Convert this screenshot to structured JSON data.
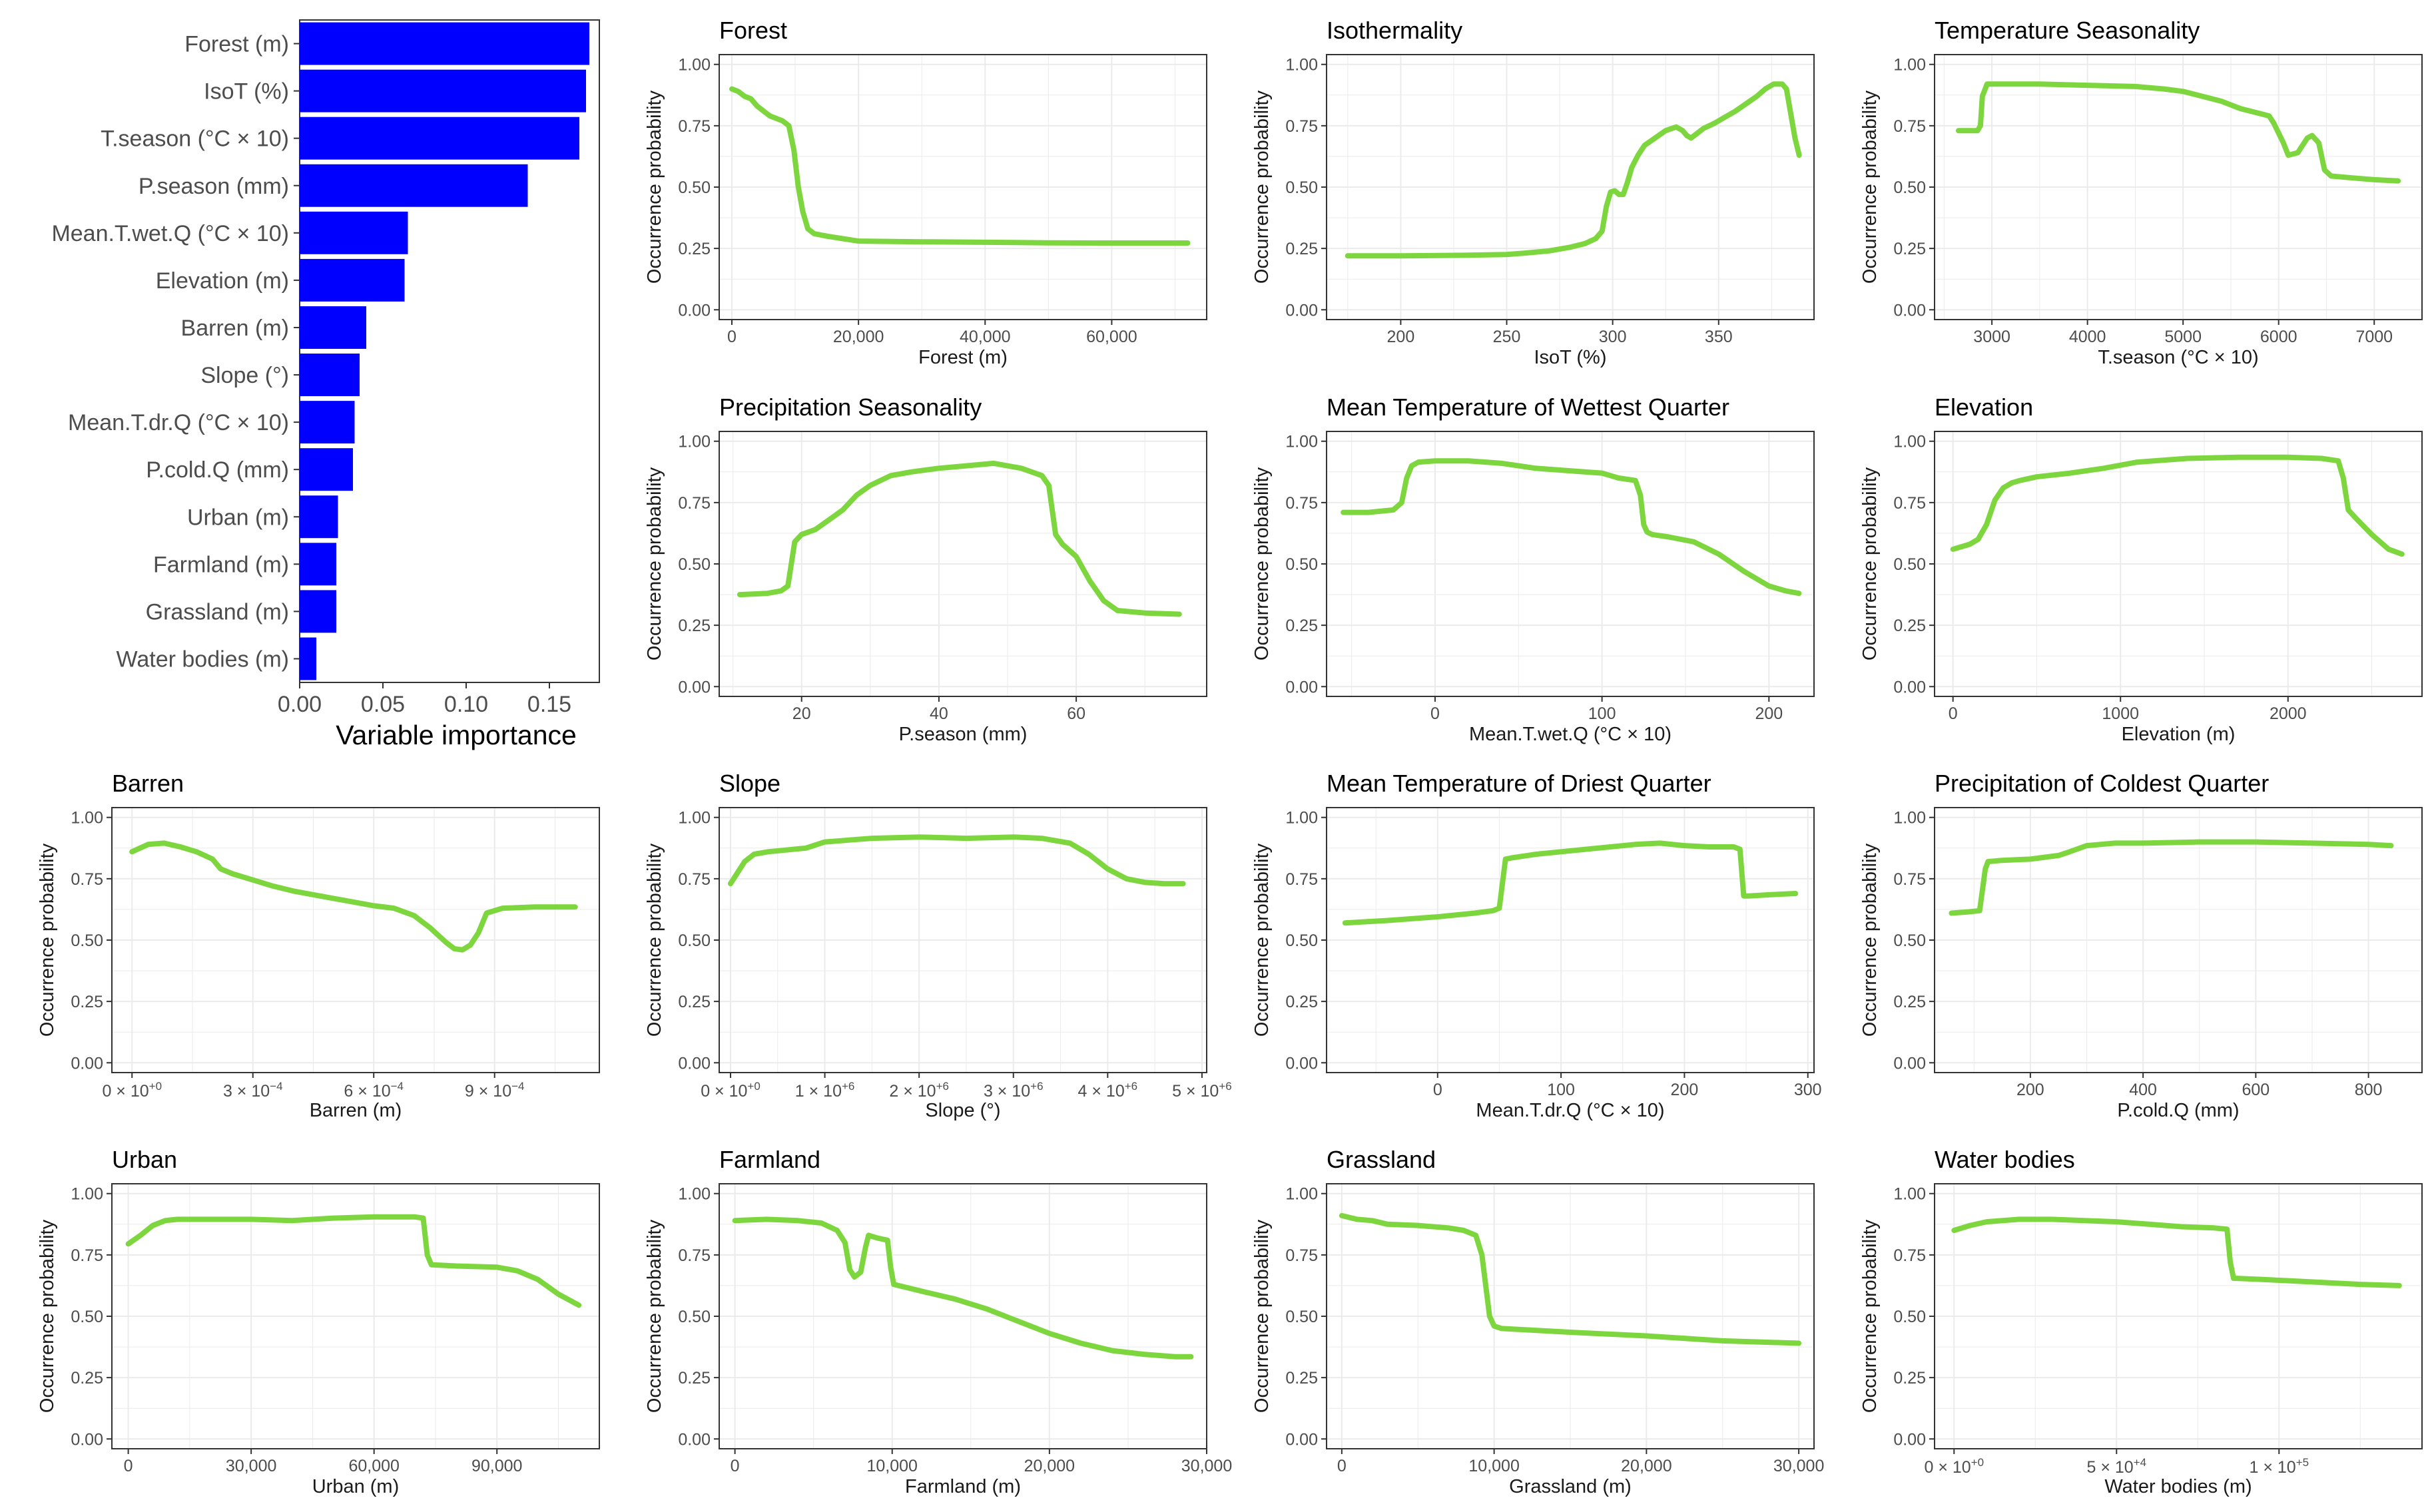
{
  "colors": {
    "line": "#7ed63f",
    "bar": "#0000ff",
    "grid": "#ebebeb",
    "frame": "#333333",
    "background": "#ffffff"
  },
  "chart_data": [
    {
      "type": "bar",
      "orientation": "horizontal",
      "title": "",
      "xlabel": "Variable importance",
      "xlim": [
        0,
        0.18
      ],
      "xticks": [
        0,
        0.05,
        0.1,
        0.15
      ],
      "xtick_labels": [
        "0.00",
        "0.05",
        "0.10",
        "0.15"
      ],
      "categories": [
        "Forest (m)",
        "IsoT (%)",
        "T.season (°C × 10)",
        "P.season (mm)",
        "Mean.T.wet.Q (°C × 10)",
        "Elevation (m)",
        "Barren (m)",
        "Slope (°)",
        "Mean.T.dr.Q (°C × 10)",
        "P.cold.Q (mm)",
        "Urban (m)",
        "Farmland (m)",
        "Grassland (m)",
        "Water bodies (m)"
      ],
      "values": [
        0.174,
        0.172,
        0.168,
        0.137,
        0.065,
        0.063,
        0.04,
        0.036,
        0.033,
        0.032,
        0.023,
        0.022,
        0.022,
        0.01
      ]
    },
    {
      "type": "line",
      "title": "Forest",
      "xlabel": "Forest (m)",
      "ylabel": "Occurrence probability",
      "xlim": [
        -2000,
        75000
      ],
      "ylim": [
        -0.04,
        1.04
      ],
      "xticks": [
        0,
        20000,
        40000,
        60000
      ],
      "xtick_labels": [
        "0",
        "20,000",
        "40,000",
        "60,000"
      ],
      "yticks": [
        0,
        0.25,
        0.5,
        0.75,
        1
      ],
      "ytick_labels": [
        "0.00",
        "0.25",
        "0.50",
        "0.75",
        "1.00"
      ],
      "x": [
        0,
        1000,
        2000,
        3000,
        4000,
        5000,
        6000,
        7000,
        8000,
        9000,
        9800,
        10500,
        11200,
        12000,
        13000,
        15000,
        20000,
        30000,
        40000,
        50000,
        60000,
        72000
      ],
      "y": [
        0.9,
        0.89,
        0.87,
        0.86,
        0.83,
        0.81,
        0.79,
        0.78,
        0.77,
        0.75,
        0.65,
        0.5,
        0.4,
        0.33,
        0.31,
        0.3,
        0.28,
        0.277,
        0.275,
        0.273,
        0.272,
        0.272
      ]
    },
    {
      "type": "line",
      "title": "Isothermality",
      "xlabel": "IsoT (%)",
      "ylabel": "Occurrence probability",
      "xlim": [
        165,
        395
      ],
      "ylim": [
        -0.04,
        1.04
      ],
      "xticks": [
        200,
        250,
        300,
        350
      ],
      "xtick_labels": [
        "200",
        "250",
        "300",
        "350"
      ],
      "yticks": [
        0,
        0.25,
        0.5,
        0.75,
        1
      ],
      "ytick_labels": [
        "0.00",
        "0.25",
        "0.50",
        "0.75",
        "1.00"
      ],
      "x": [
        175,
        200,
        230,
        250,
        260,
        270,
        280,
        287,
        292,
        295,
        297,
        299,
        301,
        303,
        305,
        307,
        309,
        312,
        315,
        320,
        325,
        330,
        333,
        335,
        337,
        340,
        343,
        348,
        352,
        358,
        363,
        368,
        372,
        376,
        380,
        382,
        384,
        386,
        388
      ],
      "y": [
        0.22,
        0.22,
        0.222,
        0.225,
        0.232,
        0.24,
        0.255,
        0.27,
        0.29,
        0.32,
        0.42,
        0.48,
        0.485,
        0.47,
        0.47,
        0.52,
        0.58,
        0.63,
        0.67,
        0.7,
        0.73,
        0.745,
        0.73,
        0.71,
        0.7,
        0.72,
        0.74,
        0.76,
        0.78,
        0.81,
        0.84,
        0.87,
        0.9,
        0.92,
        0.92,
        0.9,
        0.8,
        0.7,
        0.63
      ]
    },
    {
      "type": "line",
      "title": "Temperature Seasonality",
      "xlabel": "T.season (°C × 10)",
      "ylabel": "Occurrence probability",
      "xlim": [
        2400,
        7500
      ],
      "ylim": [
        -0.04,
        1.04
      ],
      "xticks": [
        3000,
        4000,
        5000,
        6000,
        7000
      ],
      "xtick_labels": [
        "3000",
        "4000",
        "5000",
        "6000",
        "7000"
      ],
      "yticks": [
        0,
        0.25,
        0.5,
        0.75,
        1
      ],
      "ytick_labels": [
        "0.00",
        "0.25",
        "0.50",
        "0.75",
        "1.00"
      ],
      "x": [
        2650,
        2800,
        2850,
        2880,
        2900,
        2950,
        3000,
        3500,
        4000,
        4500,
        4800,
        5000,
        5200,
        5400,
        5600,
        5800,
        5900,
        5950,
        6050,
        6100,
        6200,
        6300,
        6350,
        6420,
        6480,
        6550,
        6700,
        7000,
        7250
      ],
      "y": [
        0.73,
        0.73,
        0.73,
        0.75,
        0.87,
        0.92,
        0.92,
        0.92,
        0.915,
        0.91,
        0.9,
        0.89,
        0.87,
        0.85,
        0.82,
        0.8,
        0.79,
        0.76,
        0.68,
        0.63,
        0.64,
        0.7,
        0.71,
        0.68,
        0.57,
        0.545,
        0.54,
        0.53,
        0.525
      ]
    },
    {
      "type": "line",
      "title": "Precipitation Seasonality",
      "xlabel": "P.season (mm)",
      "ylabel": "Occurrence probability",
      "xlim": [
        8,
        79
      ],
      "ylim": [
        -0.04,
        1.04
      ],
      "xticks": [
        20,
        40,
        60
      ],
      "xtick_labels": [
        "20",
        "40",
        "60"
      ],
      "yticks": [
        0,
        0.25,
        0.5,
        0.75,
        1
      ],
      "ytick_labels": [
        "0.00",
        "0.25",
        "0.50",
        "0.75",
        "1.00"
      ],
      "x": [
        11,
        15,
        17,
        18,
        19,
        20,
        22,
        24,
        26,
        28,
        30,
        33,
        36,
        40,
        44,
        48,
        52,
        55,
        56,
        57,
        58,
        60,
        62,
        64,
        66,
        70,
        75
      ],
      "y": [
        0.375,
        0.38,
        0.39,
        0.41,
        0.59,
        0.62,
        0.64,
        0.68,
        0.72,
        0.78,
        0.82,
        0.86,
        0.875,
        0.89,
        0.9,
        0.91,
        0.89,
        0.86,
        0.82,
        0.62,
        0.58,
        0.53,
        0.43,
        0.35,
        0.31,
        0.3,
        0.295
      ]
    },
    {
      "type": "line",
      "title": "Mean Temperature of Wettest Quarter",
      "xlabel": "Mean.T.wet.Q (°C × 10)",
      "ylabel": "Occurrence probability",
      "xlim": [
        -65,
        227
      ],
      "ylim": [
        -0.04,
        1.04
      ],
      "xticks": [
        0,
        100,
        200
      ],
      "xtick_labels": [
        "0",
        "100",
        "200"
      ],
      "yticks": [
        0,
        0.25,
        0.5,
        0.75,
        1
      ],
      "ytick_labels": [
        "0.00",
        "0.25",
        "0.50",
        "0.75",
        "1.00"
      ],
      "x": [
        -55,
        -40,
        -25,
        -20,
        -17,
        -14,
        -10,
        0,
        20,
        40,
        60,
        80,
        100,
        105,
        110,
        120,
        123,
        125,
        127,
        130,
        140,
        155,
        170,
        185,
        200,
        210,
        218
      ],
      "y": [
        0.71,
        0.71,
        0.72,
        0.75,
        0.85,
        0.9,
        0.915,
        0.92,
        0.92,
        0.91,
        0.89,
        0.88,
        0.87,
        0.86,
        0.85,
        0.84,
        0.78,
        0.66,
        0.63,
        0.62,
        0.61,
        0.59,
        0.54,
        0.47,
        0.41,
        0.39,
        0.38
      ]
    },
    {
      "type": "line",
      "title": "Elevation",
      "xlabel": "Elevation (m)",
      "ylabel": "Occurrence probability",
      "xlim": [
        -110,
        2800
      ],
      "ylim": [
        -0.04,
        1.04
      ],
      "xticks": [
        0,
        1000,
        2000
      ],
      "xtick_labels": [
        "0",
        "1000",
        "2000"
      ],
      "yticks": [
        0,
        0.25,
        0.5,
        0.75,
        1
      ],
      "ytick_labels": [
        "0.00",
        "0.25",
        "0.50",
        "0.75",
        "1.00"
      ],
      "x": [
        0,
        100,
        150,
        200,
        250,
        300,
        350,
        400,
        500,
        700,
        900,
        1100,
        1400,
        1700,
        2000,
        2200,
        2300,
        2330,
        2360,
        2400,
        2500,
        2600,
        2680
      ],
      "y": [
        0.56,
        0.58,
        0.6,
        0.66,
        0.76,
        0.81,
        0.83,
        0.84,
        0.855,
        0.87,
        0.89,
        0.915,
        0.93,
        0.935,
        0.935,
        0.93,
        0.92,
        0.85,
        0.72,
        0.69,
        0.62,
        0.56,
        0.54
      ]
    },
    {
      "type": "line",
      "title": "Barren",
      "xlabel": "Barren (m)",
      "ylabel": "Occurrence probability",
      "xlim": [
        -5e-05,
        0.00116
      ],
      "ylim": [
        -0.04,
        1.04
      ],
      "xticks": [
        0,
        0.0003,
        0.0006,
        0.0009
      ],
      "xtick_labels": [
        "0 × 10",
        "3 × 10",
        "6 × 10",
        "9 × 10"
      ],
      "xtick_exponents": [
        "+0",
        "−4",
        "−4",
        "−4"
      ],
      "yticks": [
        0,
        0.25,
        0.5,
        0.75,
        1
      ],
      "ytick_labels": [
        "0.00",
        "0.25",
        "0.50",
        "0.75",
        "1.00"
      ],
      "x": [
        0,
        4e-05,
        8e-05,
        0.00012,
        0.00016,
        0.0002,
        0.00022,
        0.00025,
        0.0003,
        0.00035,
        0.0004,
        0.0005,
        0.0006,
        0.00065,
        0.0007,
        0.00074,
        0.00078,
        0.0008,
        0.00082,
        0.00084,
        0.00086,
        0.00088,
        0.00092,
        0.001,
        0.0011
      ],
      "y": [
        0.86,
        0.89,
        0.895,
        0.88,
        0.86,
        0.83,
        0.79,
        0.77,
        0.745,
        0.72,
        0.7,
        0.67,
        0.64,
        0.63,
        0.6,
        0.55,
        0.49,
        0.465,
        0.46,
        0.48,
        0.53,
        0.61,
        0.63,
        0.635,
        0.635
      ]
    },
    {
      "type": "line",
      "title": "Slope",
      "xlabel": "Slope (°)",
      "ylabel": "Occurrence probability",
      "xlim": [
        -120000,
        5050000
      ],
      "ylim": [
        -0.04,
        1.04
      ],
      "xticks": [
        0,
        1000000,
        2000000,
        3000000,
        4000000,
        5000000
      ],
      "xtick_labels": [
        "0 × 10",
        "1 × 10",
        "2 × 10",
        "3 × 10",
        "4 × 10",
        "5 × 10"
      ],
      "xtick_exponents": [
        "+0",
        "+6",
        "+6",
        "+6",
        "+6",
        "+6"
      ],
      "yticks": [
        0,
        0.25,
        0.5,
        0.75,
        1
      ],
      "ytick_labels": [
        "0.00",
        "0.25",
        "0.50",
        "0.75",
        "1.00"
      ],
      "x": [
        0,
        150000,
        250000,
        400000,
        800000,
        1000000,
        1500000,
        2000000,
        2500000,
        3000000,
        3300000,
        3600000,
        3800000,
        4000000,
        4200000,
        4400000,
        4600000,
        4800000
      ],
      "y": [
        0.73,
        0.82,
        0.85,
        0.86,
        0.875,
        0.9,
        0.915,
        0.92,
        0.915,
        0.92,
        0.915,
        0.895,
        0.85,
        0.79,
        0.75,
        0.735,
        0.73,
        0.73
      ]
    },
    {
      "type": "line",
      "title": "Mean Temperature of Driest Quarter",
      "xlabel": "Mean.T.dr.Q (°C × 10)",
      "ylabel": "Occurrence probability",
      "xlim": [
        -90,
        305
      ],
      "ylim": [
        -0.04,
        1.04
      ],
      "xticks": [
        0,
        100,
        200,
        300
      ],
      "xtick_labels": [
        "0",
        "100",
        "200",
        "300"
      ],
      "yticks": [
        0,
        0.25,
        0.5,
        0.75,
        1
      ],
      "ytick_labels": [
        "0.00",
        "0.25",
        "0.50",
        "0.75",
        "1.00"
      ],
      "x": [
        -75,
        -40,
        0,
        30,
        45,
        50,
        55,
        60,
        80,
        100,
        130,
        160,
        180,
        200,
        220,
        240,
        245,
        248,
        252,
        270,
        290
      ],
      "y": [
        0.57,
        0.58,
        0.595,
        0.61,
        0.62,
        0.63,
        0.83,
        0.835,
        0.85,
        0.86,
        0.875,
        0.89,
        0.895,
        0.885,
        0.88,
        0.88,
        0.87,
        0.68,
        0.68,
        0.685,
        0.69
      ]
    },
    {
      "type": "line",
      "title": "Precipitation of Coldest Quarter",
      "xlabel": "P.cold.Q (mm)",
      "ylabel": "Occurrence probability",
      "xlim": [
        30,
        895
      ],
      "ylim": [
        -0.04,
        1.04
      ],
      "xticks": [
        200,
        400,
        600,
        800
      ],
      "xtick_labels": [
        "200",
        "400",
        "600",
        "800"
      ],
      "yticks": [
        0,
        0.25,
        0.5,
        0.75,
        1
      ],
      "ytick_labels": [
        "0.00",
        "0.25",
        "0.50",
        "0.75",
        "1.00"
      ],
      "x": [
        60,
        90,
        110,
        120,
        125,
        150,
        200,
        250,
        270,
        300,
        350,
        400,
        500,
        600,
        700,
        800,
        840
      ],
      "y": [
        0.61,
        0.615,
        0.62,
        0.79,
        0.82,
        0.825,
        0.83,
        0.845,
        0.86,
        0.885,
        0.895,
        0.895,
        0.9,
        0.9,
        0.895,
        0.89,
        0.885
      ]
    },
    {
      "type": "line",
      "title": "Urban",
      "xlabel": "Urban (m)",
      "ylabel": "Occurrence probability",
      "xlim": [
        -4000,
        115000
      ],
      "ylim": [
        -0.04,
        1.04
      ],
      "xticks": [
        0,
        30000,
        60000,
        90000
      ],
      "xtick_labels": [
        "0",
        "30,000",
        "60,000",
        "90,000"
      ],
      "yticks": [
        0,
        0.25,
        0.5,
        0.75,
        1
      ],
      "ytick_labels": [
        "0.00",
        "0.25",
        "0.50",
        "0.75",
        "1.00"
      ],
      "x": [
        0,
        3000,
        6000,
        9000,
        12000,
        20000,
        30000,
        40000,
        50000,
        60000,
        70000,
        72000,
        73000,
        74000,
        80000,
        90000,
        95000,
        100000,
        105000,
        110000
      ],
      "y": [
        0.795,
        0.83,
        0.87,
        0.89,
        0.895,
        0.895,
        0.895,
        0.89,
        0.9,
        0.905,
        0.905,
        0.9,
        0.75,
        0.71,
        0.705,
        0.7,
        0.685,
        0.65,
        0.59,
        0.545
      ]
    },
    {
      "type": "line",
      "title": "Farmland",
      "xlabel": "Farmland (m)",
      "ylabel": "Occurrence probability",
      "xlim": [
        -1000,
        30000
      ],
      "ylim": [
        -0.04,
        1.04
      ],
      "xticks": [
        0,
        10000,
        20000,
        30000
      ],
      "xtick_labels": [
        "0",
        "10,000",
        "20,000",
        "30,000"
      ],
      "yticks": [
        0,
        0.25,
        0.5,
        0.75,
        1
      ],
      "ytick_labels": [
        "0.00",
        "0.25",
        "0.50",
        "0.75",
        "1.00"
      ],
      "x": [
        0,
        2000,
        4000,
        5500,
        6500,
        7000,
        7300,
        7600,
        8000,
        8300,
        8500,
        9000,
        9700,
        9900,
        10100,
        12000,
        14000,
        16000,
        18000,
        20000,
        22000,
        24000,
        26000,
        28000,
        29000
      ],
      "y": [
        0.89,
        0.895,
        0.89,
        0.88,
        0.85,
        0.8,
        0.69,
        0.66,
        0.68,
        0.78,
        0.83,
        0.82,
        0.81,
        0.7,
        0.63,
        0.6,
        0.57,
        0.53,
        0.48,
        0.43,
        0.39,
        0.36,
        0.345,
        0.335,
        0.335
      ]
    },
    {
      "type": "line",
      "title": "Grassland",
      "xlabel": "Grassland (m)",
      "ylabel": "Occurrence probability",
      "xlim": [
        -1000,
        31000
      ],
      "ylim": [
        -0.04,
        1.04
      ],
      "xticks": [
        0,
        10000,
        20000,
        30000
      ],
      "xtick_labels": [
        "0",
        "10,000",
        "20,000",
        "30,000"
      ],
      "yticks": [
        0,
        0.25,
        0.5,
        0.75,
        1
      ],
      "ytick_labels": [
        "0.00",
        "0.25",
        "0.50",
        "0.75",
        "1.00"
      ],
      "x": [
        0,
        1000,
        2000,
        3000,
        5000,
        7000,
        8000,
        8800,
        9200,
        9500,
        9700,
        10000,
        10500,
        12000,
        15000,
        20000,
        25000,
        30000
      ],
      "y": [
        0.91,
        0.895,
        0.89,
        0.875,
        0.87,
        0.86,
        0.85,
        0.83,
        0.75,
        0.6,
        0.5,
        0.46,
        0.45,
        0.445,
        0.435,
        0.42,
        0.4,
        0.39
      ]
    },
    {
      "type": "line",
      "title": "Water bodies",
      "xlabel": "Water bodies (m)",
      "ylabel": "Occurrence probability",
      "xlim": [
        -6000,
        144000
      ],
      "ylim": [
        -0.04,
        1.04
      ],
      "xticks": [
        0,
        50000,
        100000
      ],
      "xtick_labels": [
        "0 × 10",
        "5 × 10",
        "1 × 10"
      ],
      "xtick_exponents": [
        "+0",
        "+4",
        "+5"
      ],
      "yticks": [
        0,
        0.25,
        0.5,
        0.75,
        1
      ],
      "ytick_labels": [
        "0.00",
        "0.25",
        "0.50",
        "0.75",
        "1.00"
      ],
      "x": [
        0,
        5000,
        10000,
        20000,
        30000,
        40000,
        50000,
        60000,
        70000,
        80000,
        84000,
        85000,
        86000,
        95000,
        110000,
        125000,
        137000
      ],
      "y": [
        0.85,
        0.87,
        0.885,
        0.895,
        0.895,
        0.89,
        0.885,
        0.875,
        0.865,
        0.86,
        0.855,
        0.72,
        0.655,
        0.65,
        0.64,
        0.63,
        0.625
      ]
    }
  ]
}
